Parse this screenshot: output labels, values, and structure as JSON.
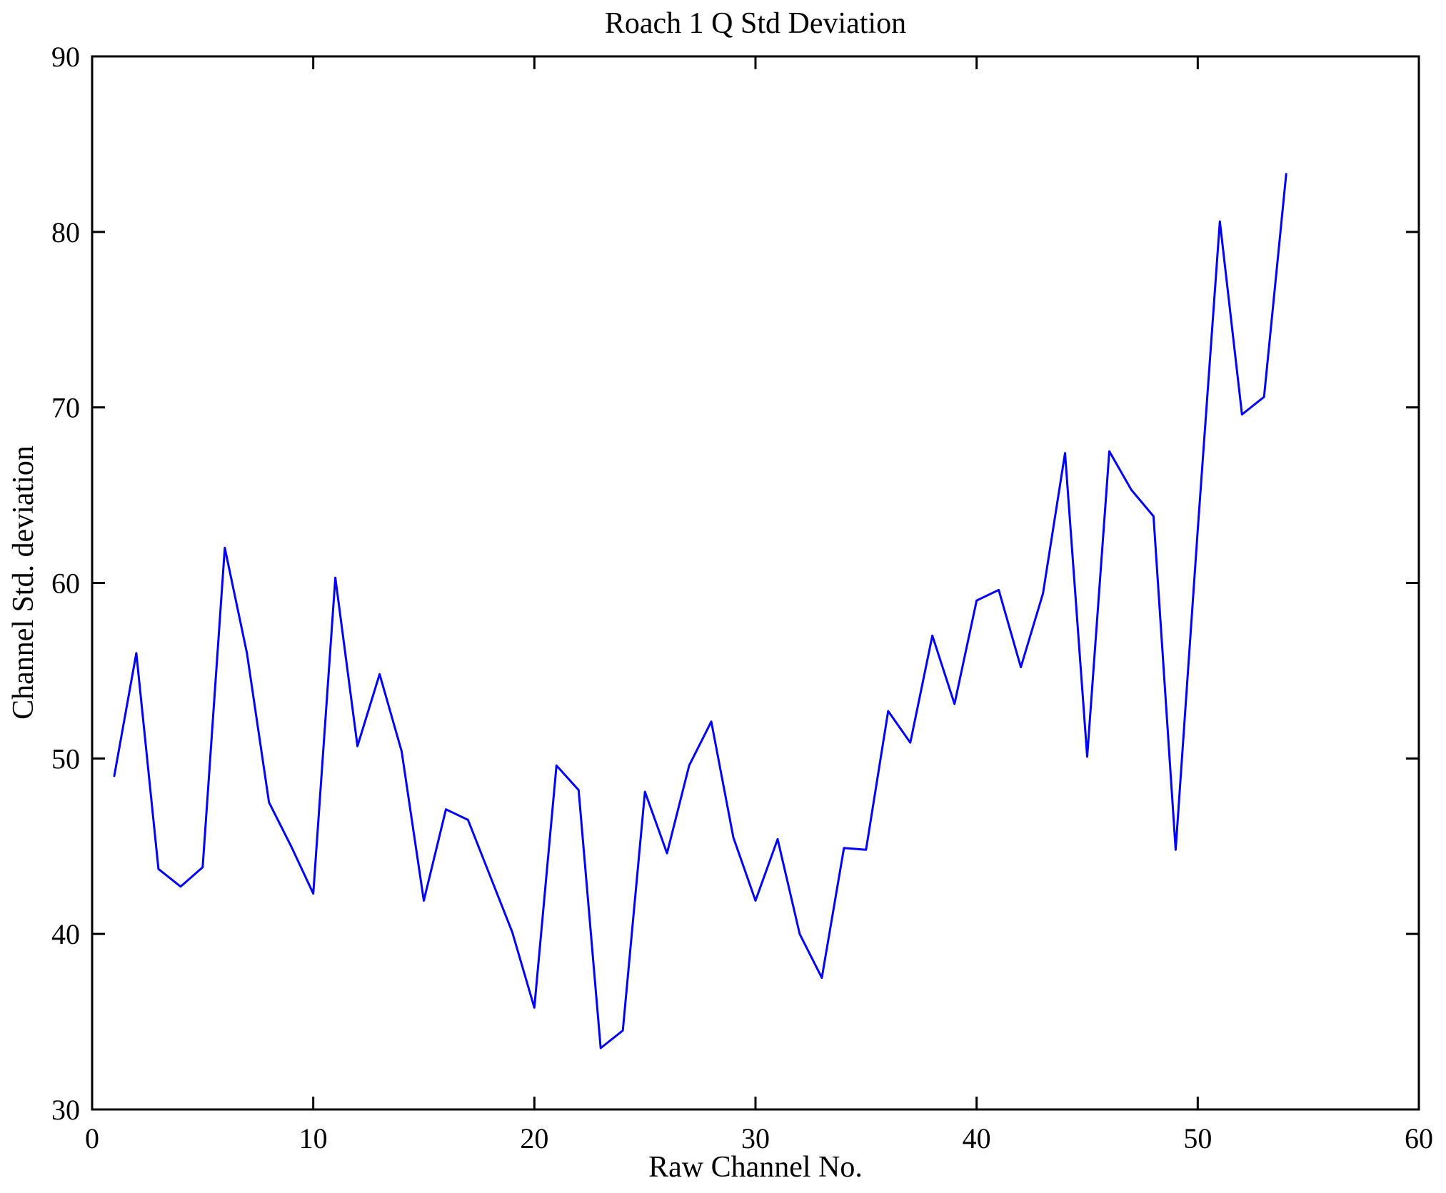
{
  "chart_data": {
    "type": "line",
    "title": "Roach 1 Q Std Deviation",
    "xlabel": "Raw Channel No.",
    "ylabel": "Channel Std. deviation",
    "xlim": [
      0,
      60
    ],
    "ylim": [
      30,
      90
    ],
    "xticks": [
      0,
      10,
      20,
      30,
      40,
      50,
      60
    ],
    "yticks": [
      30,
      40,
      50,
      60,
      70,
      80,
      90
    ],
    "grid": false,
    "legend": "none",
    "line_color": "#0000ff",
    "axis_color": "#000000",
    "background_color": "#ffffff",
    "series": [
      {
        "name": "Channel Std. deviation",
        "x": [
          1,
          2,
          3,
          4,
          5,
          6,
          7,
          8,
          9,
          10,
          11,
          12,
          13,
          14,
          15,
          16,
          17,
          18,
          19,
          20,
          21,
          22,
          23,
          24,
          25,
          26,
          27,
          28,
          29,
          30,
          31,
          32,
          33,
          34,
          35,
          36,
          37,
          38,
          39,
          40,
          41,
          42,
          43,
          44,
          45,
          46,
          47,
          48,
          49,
          50,
          51,
          52,
          53,
          54
        ],
        "values": [
          49.0,
          56.0,
          43.7,
          42.7,
          43.8,
          62.0,
          56.0,
          47.5,
          45.0,
          42.3,
          60.3,
          50.7,
          54.8,
          50.4,
          41.9,
          47.1,
          46.5,
          43.3,
          40.1,
          35.8,
          49.6,
          48.2,
          33.5,
          34.5,
          48.1,
          44.6,
          49.6,
          52.1,
          45.5,
          41.9,
          45.4,
          40.0,
          37.5,
          44.9,
          44.8,
          52.7,
          50.9,
          57.0,
          53.1,
          59.0,
          59.6,
          55.2,
          59.4,
          67.4,
          50.1,
          67.5,
          65.3,
          63.8,
          44.8,
          63.0,
          80.6,
          69.6,
          70.6,
          83.3
        ]
      }
    ]
  }
}
